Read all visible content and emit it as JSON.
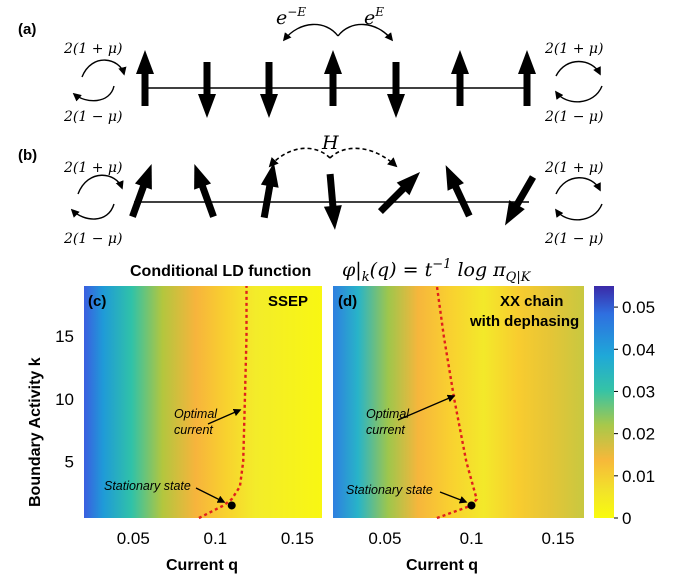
{
  "panel_a": {
    "label": "(a)",
    "rate_left_top": "2(1 + μ)",
    "rate_left_bottom": "2(1 − μ)",
    "rate_right_top": "2(1 + μ)",
    "rate_right_bottom": "2(1 − μ)",
    "hop_left": "e",
    "hop_left_exp": "−E",
    "hop_right": "e",
    "hop_right_exp": "E",
    "spins": [
      "up",
      "down",
      "down",
      "up",
      "down",
      "up",
      "up"
    ]
  },
  "panel_b": {
    "label": "(b)",
    "rate_left_top": "2(1 + μ)",
    "rate_left_bottom": "2(1 − μ)",
    "rate_right_top": "2(1 + μ)",
    "rate_right_bottom": "2(1 − μ)",
    "hop": "H",
    "spin_angles_deg": [
      20,
      -20,
      10,
      175,
      45,
      -25,
      -150
    ]
  },
  "heatmap_title": {
    "text": "Conditional LD function",
    "formula_lhs": "φ|",
    "formula_sub": "k",
    "formula_mid": "(q) = t",
    "formula_exp": "−1",
    "formula_log": " log π",
    "formula_sub2": "Q|K"
  },
  "colorbar": {
    "ticks": [
      "0.05",
      "0.04",
      "0.03",
      "0.02",
      "0.01",
      "0"
    ],
    "stops": [
      "#3b2aa8",
      "#2f6fe0",
      "#1fa8d8",
      "#35c3a6",
      "#a8c84a",
      "#f7b83a",
      "#f2e22a",
      "#f9fb0e"
    ]
  },
  "panel_c": {
    "label": "(c)",
    "title": "SSEP",
    "ann_optimal_1": "Optimal",
    "ann_optimal_2": "current",
    "ann_stationary": "Stationary state"
  },
  "panel_d": {
    "label": "(d)",
    "title_1": "XX chain",
    "title_2": "with dephasing",
    "ann_optimal_1": "Optimal",
    "ann_optimal_2": "current",
    "ann_stationary": "Stationary state"
  },
  "axes": {
    "ylabel": "Boundary Activity k",
    "xlabel_c": "Current q",
    "xlabel_d": "Current q",
    "yticks": [
      "15",
      "10",
      "5"
    ],
    "xticks_c": [
      "0.05",
      "0.1",
      "0.15"
    ],
    "xticks_d": [
      "0.05",
      "0.1",
      "0.15"
    ]
  },
  "chart_data": [
    {
      "type": "heatmap",
      "title": "SSEP",
      "xlabel": "Current q",
      "ylabel": "Boundary Activity k",
      "xlim": [
        0.02,
        0.165
      ],
      "ylim": [
        0.5,
        19
      ],
      "colorbar_range": [
        0,
        0.055
      ],
      "optimal_current": {
        "k": [
          0.5,
          1.5,
          2,
          3,
          5,
          10,
          15,
          19
        ],
        "q": [
          0.09,
          0.105,
          0.11,
          0.115,
          0.117,
          0.118,
          0.119,
          0.119
        ]
      },
      "stationary_state": {
        "q": 0.11,
        "k": 1.5
      }
    },
    {
      "type": "heatmap",
      "title": "XX chain with dephasing",
      "xlabel": "Current q",
      "ylabel": "Boundary Activity k",
      "xlim": [
        0.02,
        0.165
      ],
      "ylim": [
        0.5,
        19
      ],
      "colorbar_range": [
        0,
        0.055
      ],
      "optimal_current": {
        "k": [
          0.5,
          1.5,
          2,
          3,
          5,
          10,
          15,
          19
        ],
        "q": [
          0.08,
          0.1,
          0.103,
          0.101,
          0.097,
          0.09,
          0.084,
          0.08
        ]
      },
      "stationary_state": {
        "q": 0.1,
        "k": 1.5
      }
    }
  ]
}
